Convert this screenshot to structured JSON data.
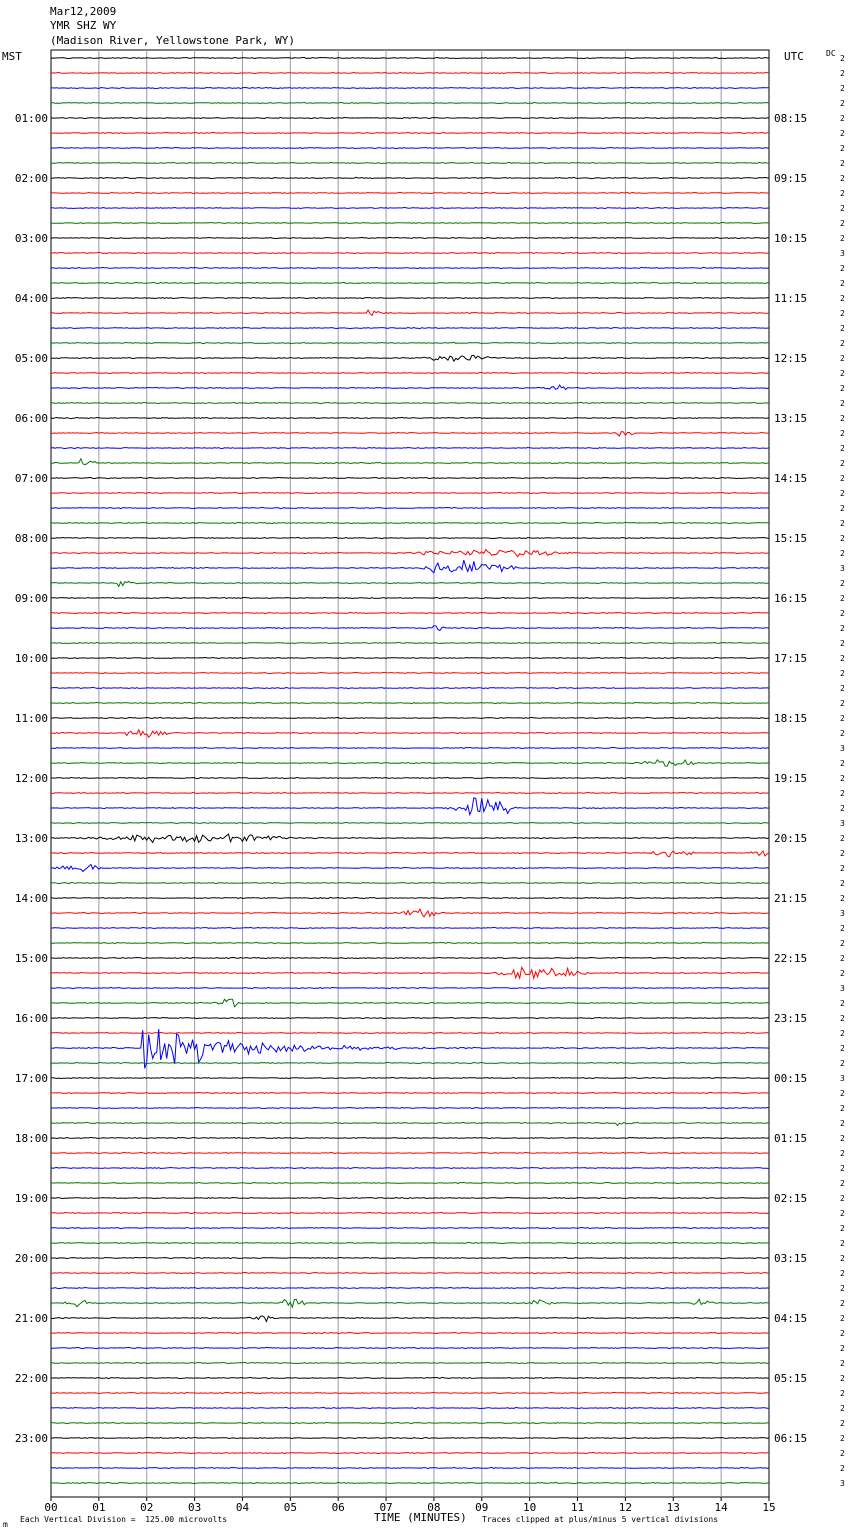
{
  "header": {
    "date": "Mar12,2009",
    "station": "YMR SHZ WY",
    "location": "(Madison River, Yellowstone Park, WY)"
  },
  "left_tz": "MST",
  "right_tz": "UTC",
  "dc_label": "DC",
  "footer": {
    "scale_note": "Each Vertical Division =  125.00 microvolts",
    "x_title": "TIME (MINUTES)",
    "clip_note": "Traces clipped at plus/minus 5 vertical divisions",
    "corner_mark": "m"
  },
  "colors": {
    "trace_cycle": [
      "#000000",
      "#ff0000",
      "#0000ff",
      "#007700"
    ],
    "grid": "#9a9aa8"
  },
  "chart_data": {
    "type": "line",
    "description_of_axes": "helicorder",
    "xlabel": "TIME (MINUTES)",
    "xlim": [
      0,
      15
    ],
    "x_ticks": [
      "00",
      "01",
      "02",
      "03",
      "04",
      "05",
      "06",
      "07",
      "08",
      "09",
      "10",
      "11",
      "12",
      "13",
      "14",
      "15"
    ],
    "rows": 96,
    "row_minutes": 15,
    "left_hour_labels": [
      "01:00",
      "02:00",
      "03:00",
      "04:00",
      "05:00",
      "06:00",
      "07:00",
      "08:00",
      "09:00",
      "10:00",
      "11:00",
      "12:00",
      "13:00",
      "14:00",
      "15:00",
      "16:00",
      "17:00",
      "18:00",
      "19:00",
      "20:00",
      "21:00",
      "22:00",
      "23:00"
    ],
    "right_hour_labels": [
      "08:15",
      "09:15",
      "10:15",
      "11:15",
      "12:15",
      "13:15",
      "14:15",
      "15:15",
      "16:15",
      "17:15",
      "18:15",
      "19:15",
      "20:15",
      "21:15",
      "22:15",
      "23:15",
      "00:15",
      "01:15",
      "02:15",
      "03:15",
      "04:15",
      "05:15",
      "06:15"
    ],
    "dc_offsets": [
      "2",
      "2",
      "2",
      "2",
      "2",
      "2",
      "2",
      "2",
      "2",
      "2",
      "2",
      "2",
      "2",
      "3",
      "2",
      "2",
      "2",
      "2",
      "2",
      "2",
      "2",
      "2",
      "2",
      "2",
      "2",
      "2",
      "2",
      "2",
      "2",
      "2",
      "2",
      "2",
      "2",
      "2",
      "3",
      "2",
      "2",
      "2",
      "2",
      "2",
      "2",
      "2",
      "2",
      "2",
      "2",
      "2",
      "3",
      "2",
      "2",
      "2",
      "2",
      "3",
      "2",
      "2",
      "2",
      "2",
      "2",
      "3",
      "2",
      "2",
      "2",
      "2",
      "3",
      "2",
      "2",
      "2",
      "2",
      "2",
      "3",
      "2",
      "2",
      "2",
      "2",
      "2",
      "2",
      "2",
      "2",
      "2",
      "2",
      "2",
      "2",
      "2",
      "2",
      "2",
      "2",
      "2",
      "2",
      "2",
      "2",
      "2",
      "2",
      "2",
      "2",
      "2",
      "2",
      "3"
    ],
    "events": [
      {
        "row": 17,
        "minute": 6.6,
        "amp": 10,
        "dur": 0.5,
        "kind": "spike"
      },
      {
        "row": 20,
        "minute": 7.8,
        "amp": 6,
        "dur": 1.5,
        "kind": "burst"
      },
      {
        "row": 22,
        "minute": 10.3,
        "amp": 8,
        "dur": 0.5,
        "kind": "burst"
      },
      {
        "row": 25,
        "minute": 11.8,
        "amp": 12,
        "dur": 0.6,
        "kind": "spike"
      },
      {
        "row": 27,
        "minute": 0.6,
        "amp": 14,
        "dur": 0.7,
        "kind": "spike"
      },
      {
        "row": 33,
        "minute": 7.5,
        "amp": 5,
        "dur": 3.5,
        "kind": "burst"
      },
      {
        "row": 34,
        "minute": 7.8,
        "amp": 12,
        "dur": 2.0,
        "kind": "burst"
      },
      {
        "row": 35,
        "minute": 1.4,
        "amp": 8,
        "dur": 0.4,
        "kind": "spike"
      },
      {
        "row": 38,
        "minute": 8.0,
        "amp": 8,
        "dur": 0.3,
        "kind": "spike"
      },
      {
        "row": 45,
        "minute": 1.5,
        "amp": 5,
        "dur": 1.0,
        "kind": "burst"
      },
      {
        "row": 47,
        "minute": 12.2,
        "amp": 5,
        "dur": 1.5,
        "kind": "burst"
      },
      {
        "row": 50,
        "minute": 8.3,
        "amp": 13,
        "dur": 1.5,
        "kind": "burst"
      },
      {
        "row": 52,
        "minute": 0.5,
        "amp": 5,
        "dur": 5.0,
        "kind": "burst"
      },
      {
        "row": 53,
        "minute": 12.5,
        "amp": 4,
        "dur": 1.0,
        "kind": "burst"
      },
      {
        "row": 53,
        "minute": 14.6,
        "amp": 5,
        "dur": 0.5,
        "kind": "burst"
      },
      {
        "row": 54,
        "minute": 0.1,
        "amp": 6,
        "dur": 1.0,
        "kind": "burst"
      },
      {
        "row": 57,
        "minute": 7.3,
        "amp": 5,
        "dur": 1.0,
        "kind": "burst"
      },
      {
        "row": 61,
        "minute": 9.3,
        "amp": 9,
        "dur": 2.0,
        "kind": "burst"
      },
      {
        "row": 63,
        "minute": 3.5,
        "amp": 8,
        "dur": 0.5,
        "kind": "burst"
      },
      {
        "row": 66,
        "minute": 1.9,
        "amp": 48,
        "dur": 4.5,
        "kind": "quake"
      },
      {
        "row": 71,
        "minute": 11.8,
        "amp": 12,
        "dur": 0.5,
        "kind": "spike"
      },
      {
        "row": 83,
        "minute": 0.3,
        "amp": 6,
        "dur": 0.5,
        "kind": "burst"
      },
      {
        "row": 83,
        "minute": 4.8,
        "amp": 7,
        "dur": 0.6,
        "kind": "burst"
      },
      {
        "row": 83,
        "minute": 10.0,
        "amp": 5,
        "dur": 0.6,
        "kind": "burst"
      },
      {
        "row": 83,
        "minute": 13.4,
        "amp": 14,
        "dur": 0.5,
        "kind": "spike"
      },
      {
        "row": 84,
        "minute": 4.2,
        "amp": 5,
        "dur": 0.5,
        "kind": "burst"
      }
    ]
  }
}
